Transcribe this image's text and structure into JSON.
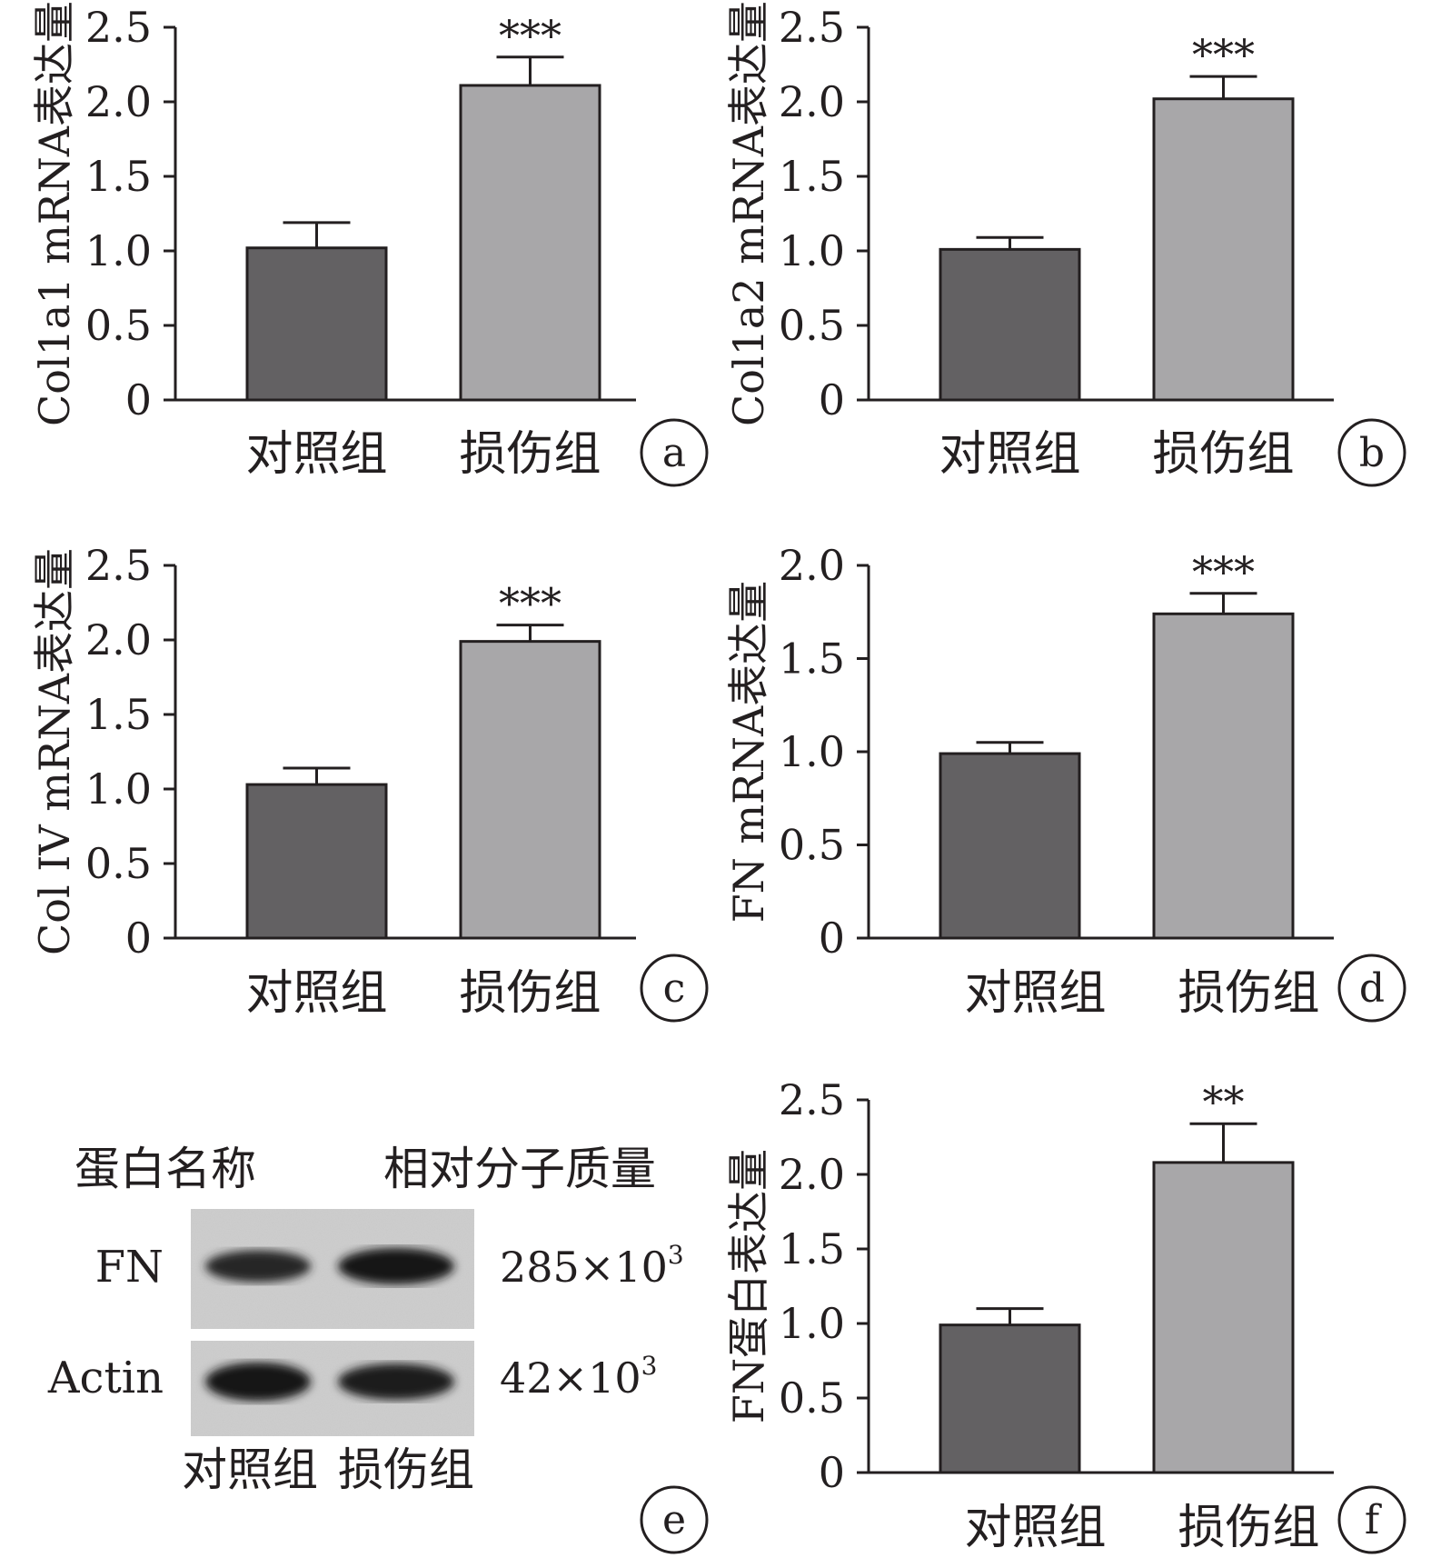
{
  "figure": {
    "panels_meta": [
      {
        "letter": "a"
      },
      {
        "letter": "b"
      },
      {
        "letter": "c"
      },
      {
        "letter": "d"
      },
      {
        "letter": "e"
      },
      {
        "letter": "f"
      }
    ]
  },
  "colors": {
    "control_bar": "#636163",
    "injury_bar": "#a8a7a9",
    "axis": "#231f20"
  },
  "western_blot": {
    "letter": "e",
    "header_protein": "蛋白名称",
    "header_mw": "相对分子质量",
    "rows": [
      {
        "protein": "FN",
        "mw": "285×10",
        "mw_exp": "3",
        "band_intensity": [
          0.7,
          1.0
        ]
      },
      {
        "protein": "Actin",
        "mw": "42×10",
        "mw_exp": "3",
        "band_intensity": [
          1.0,
          0.85
        ]
      }
    ],
    "lanes": [
      "对照组",
      "损伤组"
    ]
  },
  "chart_data": [
    {
      "type": "bar",
      "letter": "a",
      "categories": [
        "对照组",
        "损伤组"
      ],
      "values": [
        1.02,
        2.11
      ],
      "errors": [
        0.17,
        0.19
      ],
      "significance": [
        "",
        "***"
      ],
      "ylabel": "Col1a1 mRNA表达量",
      "ylim": [
        0,
        2.5
      ],
      "yticks": [
        "0",
        "0.5",
        "1.0",
        "1.5",
        "2.0",
        "2.5"
      ]
    },
    {
      "type": "bar",
      "letter": "b",
      "categories": [
        "对照组",
        "损伤组"
      ],
      "values": [
        1.01,
        2.02
      ],
      "errors": [
        0.08,
        0.15
      ],
      "significance": [
        "",
        "***"
      ],
      "ylabel": "Col1a2 mRNA表达量",
      "ylim": [
        0,
        2.5
      ],
      "yticks": [
        "0",
        "0.5",
        "1.0",
        "1.5",
        "2.0",
        "2.5"
      ]
    },
    {
      "type": "bar",
      "letter": "c",
      "categories": [
        "对照组",
        "损伤组"
      ],
      "values": [
        1.03,
        1.99
      ],
      "errors": [
        0.11,
        0.11
      ],
      "significance": [
        "",
        "***"
      ],
      "ylabel": "Col IV mRNA表达量",
      "ylim": [
        0,
        2.5
      ],
      "yticks": [
        "0",
        "0.5",
        "1.0",
        "1.5",
        "2.0",
        "2.5"
      ]
    },
    {
      "type": "bar",
      "letter": "d",
      "categories": [
        "对照组",
        "损伤组"
      ],
      "values": [
        0.99,
        1.74
      ],
      "errors": [
        0.06,
        0.11
      ],
      "significance": [
        "",
        "***"
      ],
      "ylabel": "FN mRNA表达量",
      "ylim": [
        0,
        2.0
      ],
      "yticks": [
        "0",
        "0.5",
        "1.0",
        "1.5",
        "2.0"
      ]
    },
    {
      "type": "bar",
      "letter": "f",
      "categories": [
        "对照组",
        "损伤组"
      ],
      "values": [
        0.99,
        2.08
      ],
      "errors": [
        0.11,
        0.26
      ],
      "significance": [
        "",
        "**"
      ],
      "ylabel": "FN蛋白表达量",
      "ylim": [
        0,
        2.5
      ],
      "yticks": [
        "0",
        "0.5",
        "1.0",
        "1.5",
        "2.0",
        "2.5"
      ]
    }
  ]
}
